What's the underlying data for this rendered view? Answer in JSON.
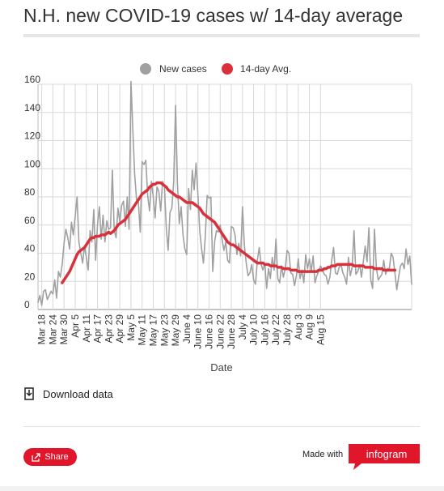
{
  "title": "N.H. new COVID-19 cases w/ 14-day average",
  "download_label": "Download data",
  "share_label": "Share",
  "made_with_label": "Made with",
  "brand_label": "infogram",
  "colors": {
    "new_cases": "#a0a0a0",
    "avg": "#d9313c",
    "accent": "#e2162a"
  },
  "icons": {
    "download": "download-icon",
    "share": "share-icon"
  },
  "chart_data": {
    "type": "line",
    "xlabel": "Date",
    "ylabel": "",
    "ylim": [
      0,
      160
    ],
    "yticks": [
      0,
      20,
      40,
      60,
      80,
      100,
      120,
      140,
      160
    ],
    "grid": true,
    "legend_position": "top-center",
    "x_start": "Mar 16",
    "tick_labels": [
      "Mar 18",
      "Mar 24",
      "Mar 30",
      "Apr 5",
      "Apr 11",
      "Apr 17",
      "Apr 23",
      "Apr 29",
      "May 5",
      "May 11",
      "May 17",
      "May 23",
      "May 29",
      "June 4",
      "June 10",
      "June 16",
      "June 22",
      "June 28",
      "July 4",
      "July 10",
      "July 16",
      "July 22",
      "July 28",
      "Aug 3",
      "Aug 9",
      "Aug 15"
    ],
    "series": [
      {
        "name": "New cases",
        "values": [
          5,
          10,
          3,
          13,
          14,
          7,
          10,
          13,
          11,
          21,
          8,
          27,
          23,
          32,
          47,
          57,
          51,
          43,
          62,
          53,
          66,
          80,
          48,
          40,
          33,
          45,
          37,
          28,
          56,
          48,
          71,
          35,
          60,
          73,
          50,
          67,
          48,
          63,
          57,
          58,
          99,
          56,
          51,
          72,
          62,
          74,
          77,
          59,
          80,
          57,
          162,
          128,
          96,
          78,
          76,
          55,
          105,
          103,
          106,
          81,
          70,
          91,
          80,
          65,
          87,
          84,
          70,
          91,
          88,
          58,
          42,
          69,
          72,
          91,
          145,
          90,
          61,
          73,
          53,
          43,
          39,
          86,
          71,
          99,
          85,
          104,
          82,
          56,
          43,
          33,
          52,
          81,
          79,
          80,
          27,
          48,
          56,
          55,
          60,
          50,
          42,
          48,
          35,
          33,
          59,
          58,
          53,
          39,
          47,
          38,
          73,
          46,
          33,
          24,
          26,
          32,
          21,
          18,
          35,
          44,
          32,
          28,
          33,
          15,
          29,
          22,
          37,
          28,
          50,
          22,
          19,
          31,
          23,
          29,
          42,
          40,
          26,
          25,
          17,
          24,
          36,
          22,
          28,
          19,
          39,
          29,
          36,
          27,
          38,
          19,
          24,
          27,
          31,
          28,
          25,
          24,
          18,
          23,
          35,
          44,
          26,
          25,
          30,
          32,
          26,
          23,
          18,
          37,
          24,
          30,
          56,
          25,
          27,
          32,
          23,
          34,
          45,
          34,
          58,
          21,
          15,
          57,
          30,
          21,
          23,
          25,
          35,
          25,
          29,
          29,
          40,
          37,
          26,
          14,
          23,
          31,
          33,
          29,
          43,
          32,
          38,
          18
        ]
      },
      {
        "name": "14-day Avg.",
        "values": [
          19,
          21,
          23,
          25,
          27,
          30,
          33,
          36,
          39,
          41,
          42,
          43,
          44,
          46,
          48,
          50,
          51,
          51,
          52,
          52,
          52,
          53,
          53,
          53,
          54,
          55,
          54,
          55,
          56,
          58,
          60,
          61,
          62,
          63,
          64,
          66,
          68,
          70,
          72,
          74,
          76,
          78,
          80,
          82,
          83,
          84,
          85,
          87,
          88,
          89,
          89,
          90,
          90,
          90,
          89,
          88,
          87,
          85,
          84,
          83,
          82,
          81,
          80,
          80,
          79,
          78,
          77,
          76,
          76,
          76,
          76,
          75,
          74,
          73,
          72,
          70,
          68,
          67,
          66,
          65,
          64,
          63,
          62,
          60,
          58,
          56,
          54,
          52,
          50,
          48,
          47,
          46,
          46,
          45,
          44,
          43,
          42,
          41,
          40,
          39,
          38,
          37,
          36,
          35,
          34,
          33,
          33,
          33,
          33,
          32,
          32,
          32,
          31,
          31,
          31,
          31,
          30,
          30,
          30,
          29,
          29,
          29,
          29,
          28,
          28,
          28,
          28,
          27,
          27,
          27,
          27,
          27,
          27,
          27,
          27,
          27,
          27,
          27,
          28,
          28,
          28,
          29,
          29,
          30,
          30,
          31,
          31,
          31,
          32,
          32,
          32,
          32,
          32,
          32,
          32,
          32,
          32,
          31,
          31,
          31,
          31,
          31,
          31,
          30,
          30,
          30,
          30,
          30,
          29,
          29,
          29,
          29,
          29,
          28,
          28,
          28,
          28,
          28,
          28,
          28
        ]
      }
    ]
  }
}
